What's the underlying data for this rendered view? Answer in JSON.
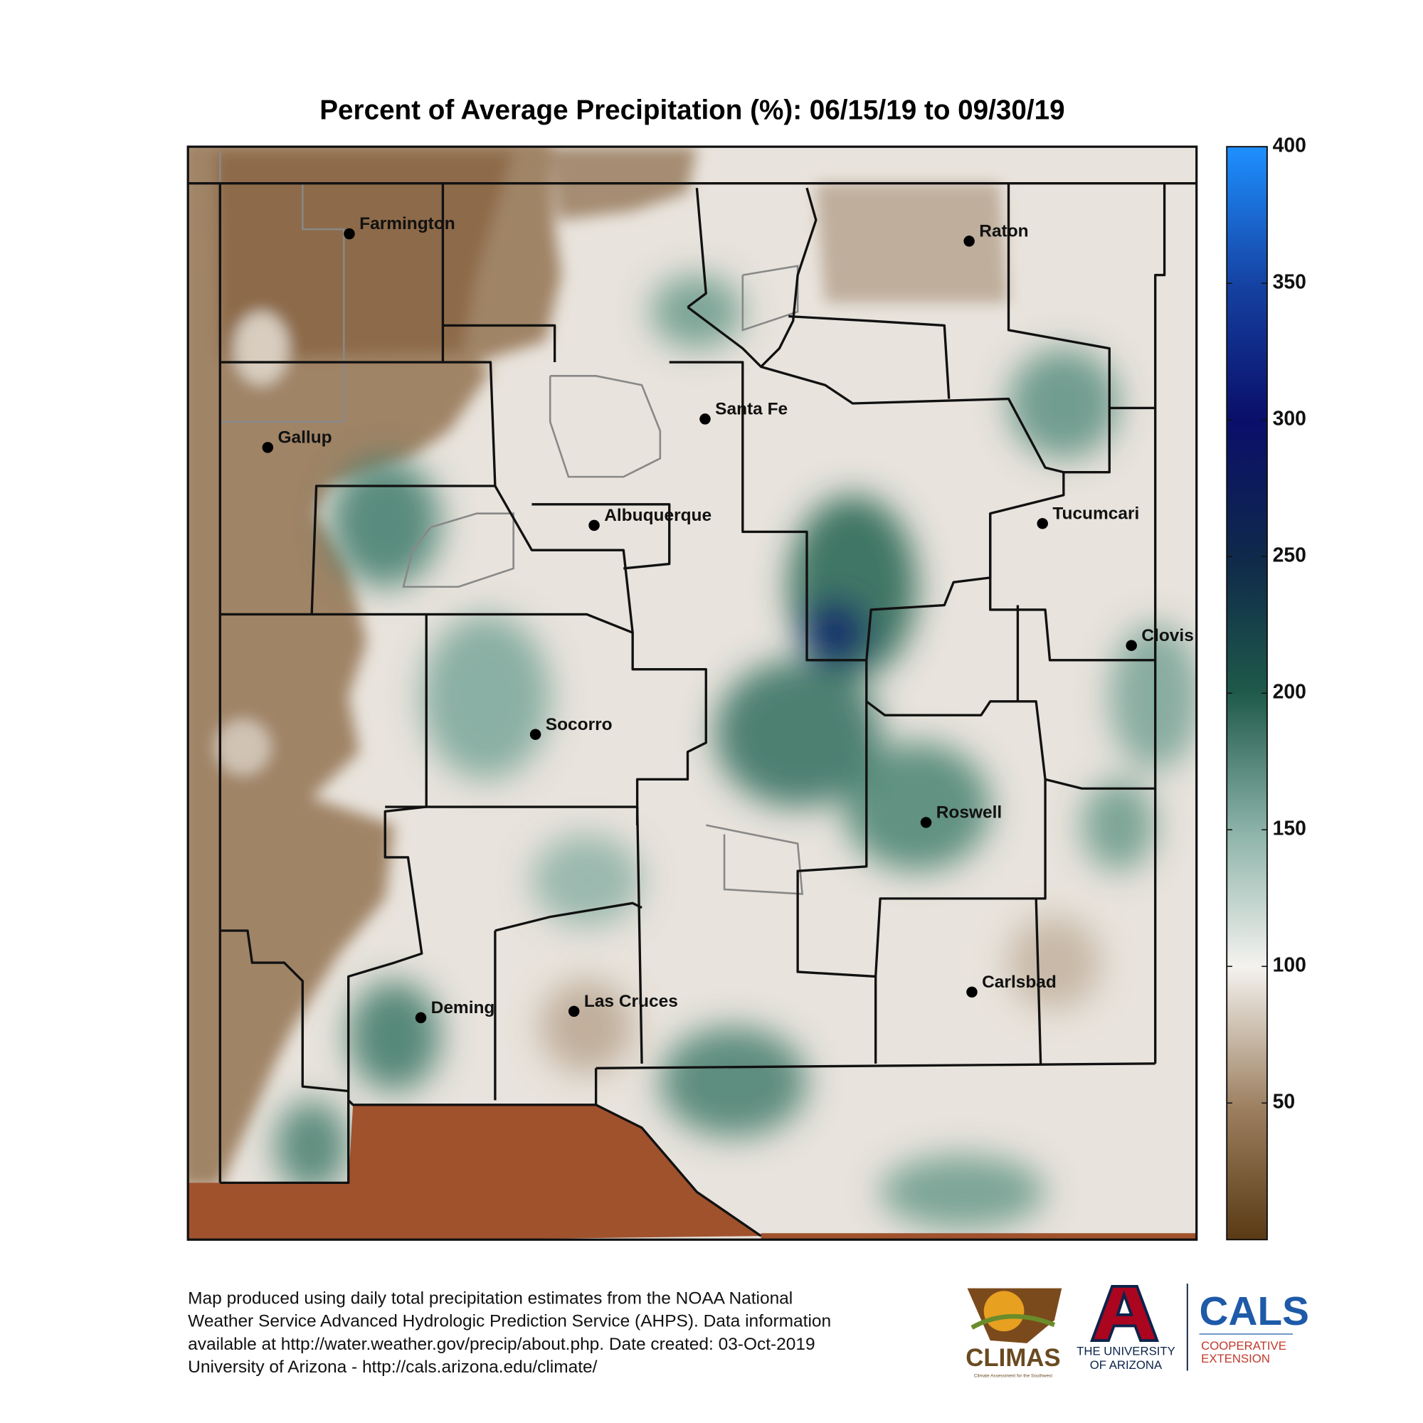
{
  "title": "Percent of Average Precipitation (%): 06/15/19 to 09/30/19",
  "colorbar": {
    "clim": [
      0,
      400
    ],
    "ticks": [
      50,
      100,
      150,
      200,
      250,
      300,
      350,
      400
    ]
  },
  "cities": [
    "Farmington",
    "Raton",
    "Santa Fe",
    "Gallup",
    "Albuquerque",
    "Tucumcari",
    "Clovis",
    "Socorro",
    "Roswell",
    "Carlsbad",
    "Deming",
    "Las Cruces"
  ],
  "footer": [
    "Map produced using daily total precipitation estimates from the NOAA National",
    "Weather Service Advanced Hydrologic Prediction Service (AHPS). Data information",
    "available at http://water.weather.gov/precip/about.php. Date created: 03-Oct-2019",
    "University of Arizona - http://cals.arizona.edu/climate/"
  ],
  "logos": {
    "climas": "CLIMAS",
    "climas_sub": "Climate Assessment for the Southwest",
    "ua": [
      "THE UNIVERSITY",
      "OF ARIZONA"
    ],
    "cals": "CALS",
    "cals_sub": [
      "COOPERATIVE",
      "EXTENSION"
    ]
  }
}
